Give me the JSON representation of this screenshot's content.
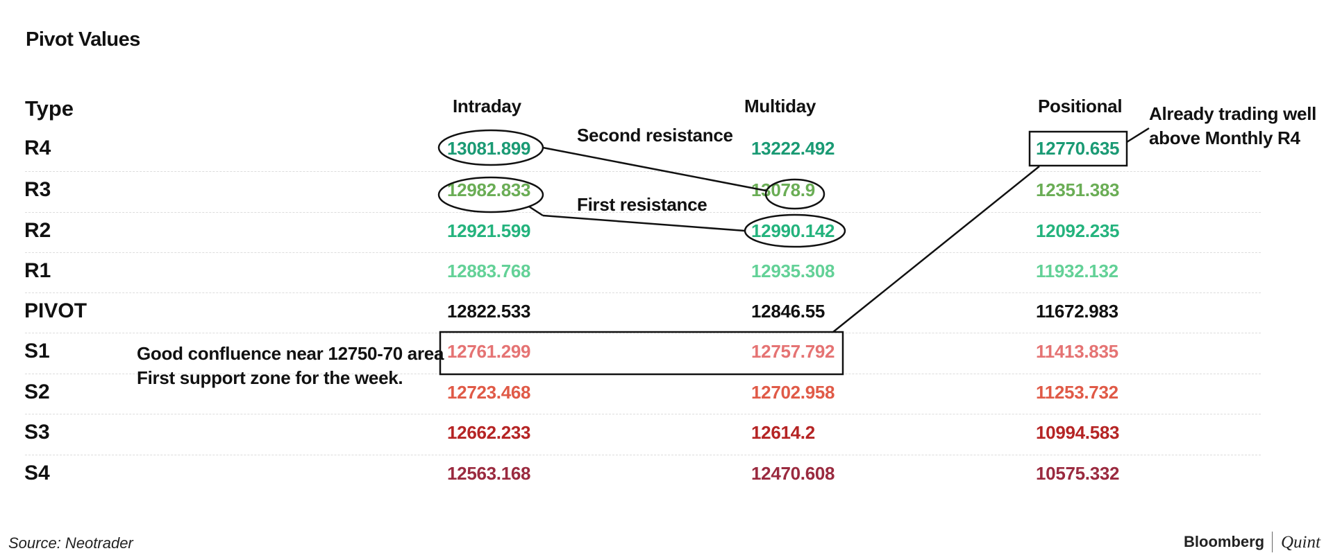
{
  "title": "Pivot Values",
  "source": "Source: Neotrader",
  "brand": {
    "primary": "Bloomberg",
    "secondary": "Quint"
  },
  "chart_data": {
    "type": "table",
    "columns": [
      "Type",
      "Intraday",
      "Multiday",
      "Positional"
    ],
    "rows": [
      {
        "type": "R4",
        "intraday": "13081.899",
        "multiday": "13222.492",
        "positional": "12770.635",
        "color": "#1a9a74"
      },
      {
        "type": "R3",
        "intraday": "12982.833",
        "multiday": "13078.9",
        "positional": "12351.383",
        "color": "#6aad55"
      },
      {
        "type": "R2",
        "intraday": "12921.599",
        "multiday": "12990.142",
        "positional": "12092.235",
        "color": "#24b37d"
      },
      {
        "type": "R1",
        "intraday": "12883.768",
        "multiday": "12935.308",
        "positional": "11932.132",
        "color": "#63d197"
      },
      {
        "type": "PIVOT",
        "intraday": "12822.533",
        "multiday": "12846.55",
        "positional": "11672.983",
        "color": "#111111"
      },
      {
        "type": "S1",
        "intraday": "12761.299",
        "multiday": "12757.792",
        "positional": "11413.835",
        "color": "#e57373"
      },
      {
        "type": "S2",
        "intraday": "12723.468",
        "multiday": "12702.958",
        "positional": "11253.732",
        "color": "#e05a47"
      },
      {
        "type": "S3",
        "intraday": "12662.233",
        "multiday": "12614.2",
        "positional": "10994.583",
        "color": "#b52424"
      },
      {
        "type": "S4",
        "intraday": "12563.168",
        "multiday": "12470.608",
        "positional": "10575.332",
        "color": "#9a2a3f"
      }
    ],
    "annotations": {
      "second_resistance": "Second resistance",
      "first_resistance": "First resistance",
      "monthly_line1": "Already trading well",
      "monthly_line2": "above Monthly R4",
      "support_line1": "Good confluence near 12750-70 area",
      "support_line2": "First support zone for the week."
    }
  }
}
